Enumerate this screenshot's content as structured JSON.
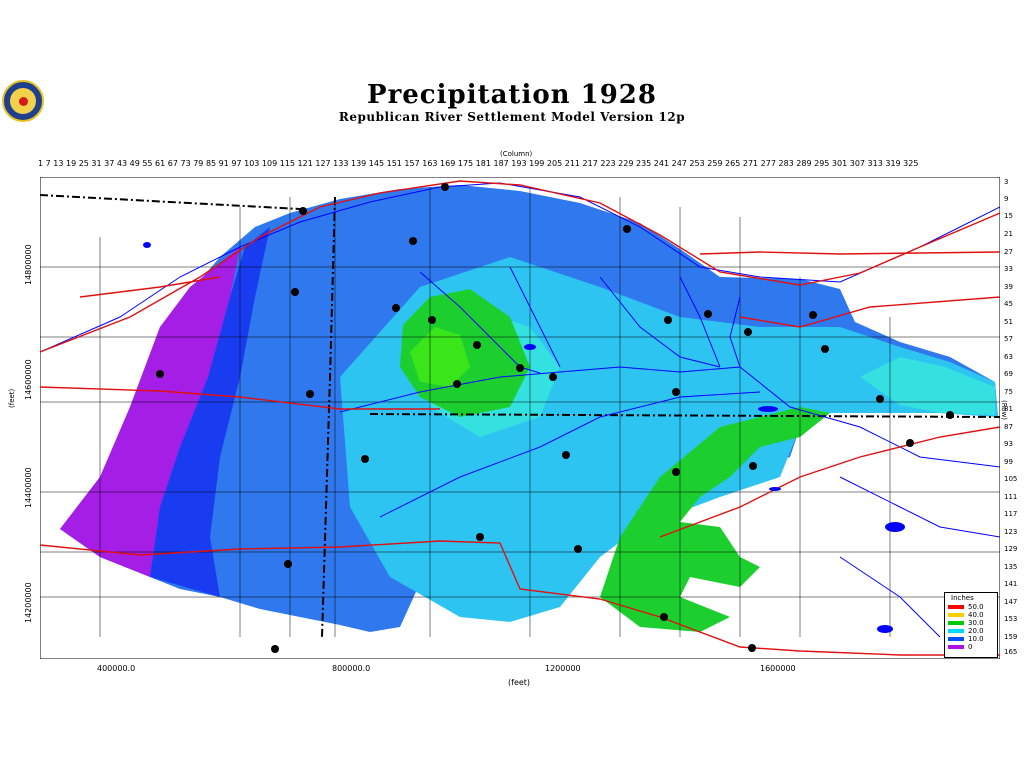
{
  "header": {
    "title": "Precipitation 1928",
    "subtitle": "Republican River Settlement Model Version 12p"
  },
  "axes": {
    "column_label": "(Column)",
    "row_label": "(Row)",
    "x_label": "(feet)",
    "y_label": "(feet)",
    "column_ticks": "1  7  13  19  25  31  37  43  49  55  61  67  73  79  85  91  97  103 109 115 121 127 133 139 145 151 157 163 169 175 181 187 193 199 205 211 217 223 229 235 241 247 253 259 265 271 277 283 289 295 301 307 313 319 325",
    "row_ticks": [
      "3",
      "9",
      "15",
      "21",
      "27",
      "33",
      "39",
      "45",
      "51",
      "57",
      "63",
      "69",
      "75",
      "81",
      "87",
      "93",
      "99",
      "105",
      "111",
      "117",
      "123",
      "129",
      "135",
      "141",
      "147",
      "153",
      "159",
      "165"
    ],
    "x_ticks": [
      "400000.0",
      "800000.0",
      "1200000",
      "1600000"
    ],
    "y_ticks": [
      "14800000",
      "14600000",
      "14400000",
      "14200000"
    ]
  },
  "legend": {
    "title": "Inches",
    "items": [
      {
        "label": "50.0",
        "color": "#ff0000"
      },
      {
        "label": "40.0",
        "color": "#f7d000"
      },
      {
        "label": "30.0",
        "color": "#00c800"
      },
      {
        "label": "20.0",
        "color": "#00d8ff"
      },
      {
        "label": "10.0",
        "color": "#0050ff"
      },
      {
        "label": "0",
        "color": "#b010e0"
      }
    ]
  },
  "colors": {
    "purple": "#a41ee6",
    "blue_dark": "#1a3cf0",
    "blue_mid": "#2f78ee",
    "cyan": "#2ec4f2",
    "aqua": "#35e0e0",
    "green": "#1dcf2e",
    "green_bright": "#3ae61a",
    "river": "#0000ff",
    "road": "#e01010",
    "boundary": "#000000"
  }
}
